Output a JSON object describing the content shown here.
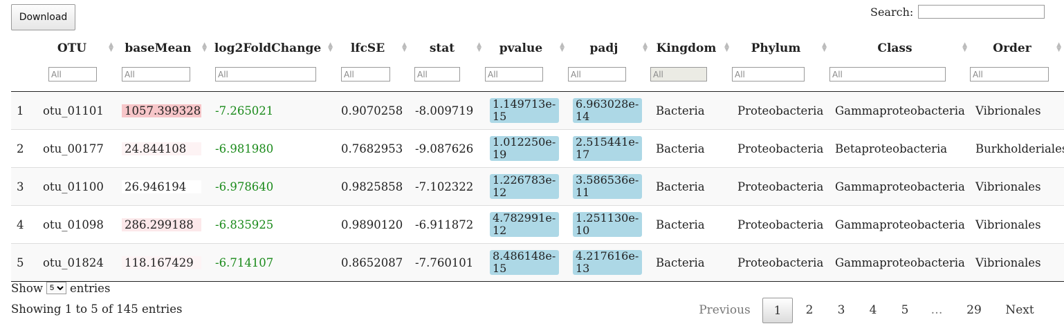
{
  "toolbar": {
    "download_label": "Download"
  },
  "search": {
    "label": "Search:",
    "value": ""
  },
  "table": {
    "columns": [
      {
        "label": ""
      },
      {
        "label": "OTU"
      },
      {
        "label": "baseMean"
      },
      {
        "label": "log2FoldChange"
      },
      {
        "label": "lfcSE"
      },
      {
        "label": "stat"
      },
      {
        "label": "pvalue"
      },
      {
        "label": "padj"
      },
      {
        "label": "Kingdom"
      },
      {
        "label": "Phylum"
      },
      {
        "label": "Class"
      },
      {
        "label": "Order"
      }
    ],
    "filter_placeholder": "All",
    "rows": [
      {
        "idx": "1",
        "otu": "otu_01101",
        "baseMean": "1057.399328",
        "bm_level": 1.0,
        "bm_color": "#f7c6c9",
        "lfc": "-7.265021",
        "lfcSE": "0.9070258",
        "stat": "-8.009719",
        "pvalue": "1.149713e-15",
        "padj": "6.963028e-14",
        "kingdom": "Bacteria",
        "phylum": "Proteobacteria",
        "class": "Gammaproteobacteria",
        "order": "Vibrionales"
      },
      {
        "idx": "2",
        "otu": "otu_00177",
        "baseMean": "24.844108",
        "bm_level": 0.02,
        "bm_color": "#fdf3f4",
        "lfc": "-6.981980",
        "lfcSE": "0.7682953",
        "stat": "-9.087626",
        "pvalue": "1.012250e-19",
        "padj": "2.515441e-17",
        "kingdom": "Bacteria",
        "phylum": "Proteobacteria",
        "class": "Betaproteobacteria",
        "order": "Burkholderiales"
      },
      {
        "idx": "3",
        "otu": "otu_01100",
        "baseMean": "26.946194",
        "bm_level": 0.03,
        "bm_color": "#ffffff",
        "lfc": "-6.978640",
        "lfcSE": "0.9825858",
        "stat": "-7.102322",
        "pvalue": "1.226783e-12",
        "padj": "3.586536e-11",
        "kingdom": "Bacteria",
        "phylum": "Proteobacteria",
        "class": "Gammaproteobacteria",
        "order": "Vibrionales"
      },
      {
        "idx": "4",
        "otu": "otu_01098",
        "baseMean": "286.299188",
        "bm_level": 0.27,
        "bm_color": "#fce8ea",
        "lfc": "-6.835925",
        "lfcSE": "0.9890120",
        "stat": "-6.911872",
        "pvalue": "4.782991e-12",
        "padj": "1.251130e-10",
        "kingdom": "Bacteria",
        "phylum": "Proteobacteria",
        "class": "Gammaproteobacteria",
        "order": "Vibrionales"
      },
      {
        "idx": "5",
        "otu": "otu_01824",
        "baseMean": "118.167429",
        "bm_level": 0.11,
        "bm_color": "#fdf4f5",
        "lfc": "-6.714107",
        "lfcSE": "0.8652087",
        "stat": "-7.760101",
        "pvalue": "8.486148e-15",
        "padj": "4.217616e-13",
        "kingdom": "Bacteria",
        "phylum": "Proteobacteria",
        "class": "Gammaproteobacteria",
        "order": "Vibrionales"
      }
    ]
  },
  "footer": {
    "show_label": "Show",
    "page_size": "5",
    "entries_label": "entries",
    "info": "Showing 1 to 5 of 145 entries"
  },
  "pagination": {
    "previous": "Previous",
    "pages": [
      "1",
      "2",
      "3",
      "4",
      "5",
      "…",
      "29"
    ],
    "current": "1",
    "next": "Next"
  },
  "colors": {
    "lfc_text": "#1a8a1a",
    "pvalue_bg": "#add8e6",
    "basemean_bar": "#f7c6c9"
  }
}
